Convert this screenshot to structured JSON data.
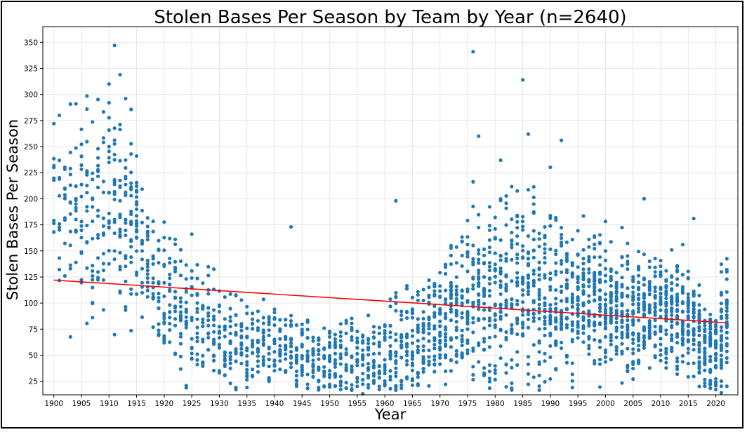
{
  "chart_data": {
    "type": "scatter",
    "title": "Stolen Bases Per Season by Team by Year (n=2640)",
    "xlabel": "Year",
    "ylabel": "Stolen Bases Per Season",
    "xlim": [
      1898,
      2024
    ],
    "ylim": [
      12,
      365
    ],
    "xticks": [
      1900,
      1905,
      1910,
      1915,
      1920,
      1925,
      1930,
      1935,
      1940,
      1945,
      1950,
      1955,
      1960,
      1965,
      1970,
      1975,
      1980,
      1985,
      1990,
      1995,
      2000,
      2005,
      2010,
      2015,
      2020
    ],
    "xtick_labels": [
      "1900",
      "1905",
      "1910",
      "1915",
      "1920",
      "1925",
      "1930",
      "1935",
      "1940",
      "1945",
      "1950",
      "1955",
      "1960",
      "1965",
      "1970",
      "1975",
      "1980",
      "1985",
      "1990",
      "1995",
      "2000",
      "2005",
      "2010",
      "2015",
      "2020"
    ],
    "yticks": [
      25,
      50,
      75,
      100,
      125,
      150,
      175,
      200,
      225,
      250,
      275,
      300,
      325,
      350
    ],
    "ytick_labels": [
      "25",
      "50",
      "75",
      "100",
      "125",
      "150",
      "175",
      "200",
      "225",
      "250",
      "275",
      "300",
      "325",
      "350"
    ],
    "grid": true,
    "n": 2640,
    "point_color": "#1f77b4",
    "trend_color": "#ff0000",
    "trend_line": {
      "x": [
        1900,
        2022
      ],
      "y": [
        122,
        81
      ]
    },
    "notable_points": [
      {
        "x": 1911,
        "y": 347
      },
      {
        "x": 1976,
        "y": 341
      },
      {
        "x": 1912,
        "y": 319
      },
      {
        "x": 1985,
        "y": 314
      },
      {
        "x": 1910,
        "y": 310
      },
      {
        "x": 1913,
        "y": 296
      },
      {
        "x": 1904,
        "y": 291
      },
      {
        "x": 1901,
        "y": 280
      },
      {
        "x": 1900,
        "y": 272
      },
      {
        "x": 1986,
        "y": 262
      },
      {
        "x": 1977,
        "y": 260
      },
      {
        "x": 1992,
        "y": 256
      },
      {
        "x": 1962,
        "y": 198
      },
      {
        "x": 2007,
        "y": 200
      },
      {
        "x": 1943,
        "y": 173
      },
      {
        "x": 2016,
        "y": 181
      },
      {
        "x": 1956,
        "y": 13
      },
      {
        "x": 2021,
        "y": 14
      }
    ],
    "year_profiles": [
      {
        "x": 1900,
        "mean": 190,
        "sd": 40,
        "n": 8
      },
      {
        "x": 1905,
        "mean": 185,
        "sd": 50,
        "n": 16
      },
      {
        "x": 1910,
        "mean": 190,
        "sd": 50,
        "n": 16
      },
      {
        "x": 1913,
        "mean": 190,
        "sd": 45,
        "n": 20
      },
      {
        "x": 1915,
        "mean": 175,
        "sd": 40,
        "n": 24
      },
      {
        "x": 1916,
        "mean": 150,
        "sd": 28,
        "n": 16
      },
      {
        "x": 1918,
        "mean": 130,
        "sd": 25,
        "n": 16
      },
      {
        "x": 1920,
        "mean": 105,
        "sd": 30,
        "n": 16
      },
      {
        "x": 1925,
        "mean": 90,
        "sd": 30,
        "n": 16
      },
      {
        "x": 1930,
        "mean": 70,
        "sd": 25,
        "n": 16
      },
      {
        "x": 1935,
        "mean": 55,
        "sd": 20,
        "n": 16
      },
      {
        "x": 1940,
        "mean": 55,
        "sd": 20,
        "n": 16
      },
      {
        "x": 1945,
        "mean": 50,
        "sd": 20,
        "n": 16
      },
      {
        "x": 1950,
        "mean": 45,
        "sd": 18,
        "n": 16
      },
      {
        "x": 1955,
        "mean": 45,
        "sd": 18,
        "n": 16
      },
      {
        "x": 1960,
        "mean": 50,
        "sd": 20,
        "n": 16
      },
      {
        "x": 1961,
        "mean": 55,
        "sd": 22,
        "n": 18
      },
      {
        "x": 1965,
        "mean": 65,
        "sd": 28,
        "n": 20
      },
      {
        "x": 1969,
        "mean": 75,
        "sd": 30,
        "n": 24
      },
      {
        "x": 1970,
        "mean": 80,
        "sd": 30,
        "n": 24
      },
      {
        "x": 1975,
        "mean": 105,
        "sd": 40,
        "n": 24
      },
      {
        "x": 1977,
        "mean": 110,
        "sd": 45,
        "n": 26
      },
      {
        "x": 1980,
        "mean": 105,
        "sd": 45,
        "n": 26
      },
      {
        "x": 1985,
        "mean": 120,
        "sd": 45,
        "n": 26
      },
      {
        "x": 1990,
        "mean": 115,
        "sd": 40,
        "n": 26
      },
      {
        "x": 1993,
        "mean": 105,
        "sd": 35,
        "n": 28
      },
      {
        "x": 1995,
        "mean": 100,
        "sd": 35,
        "n": 28
      },
      {
        "x": 1998,
        "mean": 100,
        "sd": 33,
        "n": 30
      },
      {
        "x": 2000,
        "mean": 95,
        "sd": 30,
        "n": 30
      },
      {
        "x": 2005,
        "mean": 90,
        "sd": 28,
        "n": 30
      },
      {
        "x": 2010,
        "mean": 95,
        "sd": 28,
        "n": 30
      },
      {
        "x": 2015,
        "mean": 85,
        "sd": 25,
        "n": 30
      },
      {
        "x": 2020,
        "mean": 50,
        "sd": 20,
        "n": 30
      },
      {
        "x": 2021,
        "mean": 70,
        "sd": 25,
        "n": 30
      },
      {
        "x": 2022,
        "mean": 80,
        "sd": 25,
        "n": 30
      }
    ]
  }
}
